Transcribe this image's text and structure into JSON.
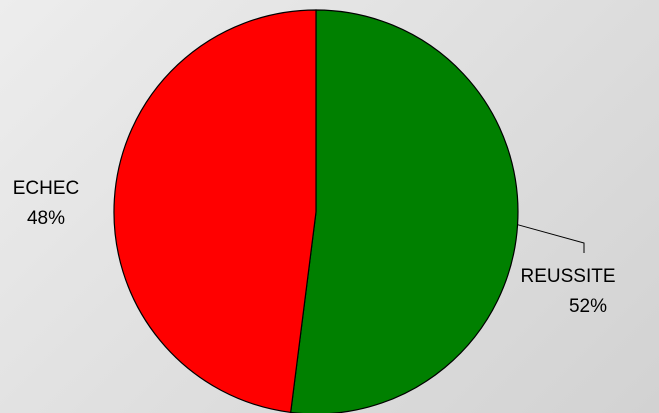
{
  "chart_data": {
    "type": "pie",
    "title": "",
    "categories": [
      "REUSSITE",
      "ECHEC"
    ],
    "values": [
      52,
      48
    ],
    "value_labels": [
      "52%",
      "48%"
    ],
    "colors": [
      "#008000",
      "#ff0000"
    ],
    "start": "top",
    "direction": "clockwise",
    "legend": "none",
    "label_position": "outside"
  }
}
